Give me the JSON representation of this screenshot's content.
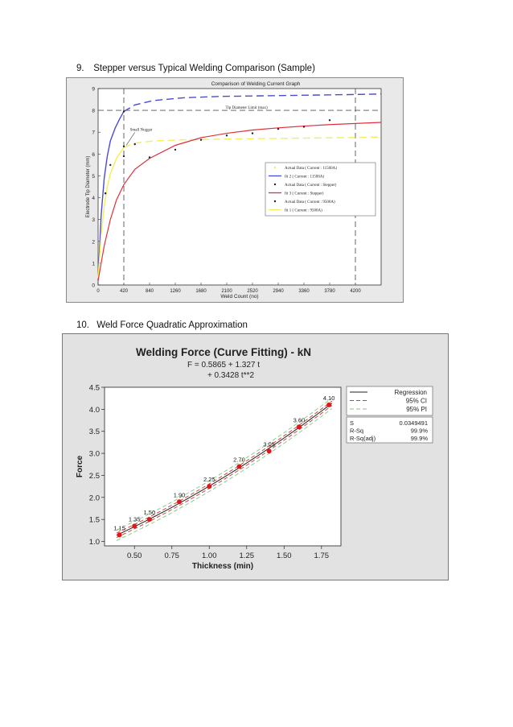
{
  "section9": {
    "number": "9.",
    "title": "Stepper versus Typical Welding Comparison (Sample)"
  },
  "section10": {
    "number": "10.",
    "title": "Weld Force Quadratic Approximation"
  },
  "colors": {
    "fit2_blue": "#4a4ad8",
    "fit1_yellow": "#f2ef5a",
    "fit3_red": "#e0303a",
    "regression_red": "#cc1111",
    "ci_red": "#d03030",
    "pi_green": "#7fc87f"
  },
  "chart_data": [
    {
      "type": "line",
      "title": "Comparison of Welding Current Graph",
      "xlabel": "Weld Count (no)",
      "ylabel": "Electrode Tip Diameter (mm)",
      "xlim": [
        0,
        4620
      ],
      "ylim": [
        0,
        9
      ],
      "x_ticks": [
        "0",
        "420",
        "840",
        "1260",
        "1680",
        "2100",
        "2520",
        "2940",
        "3360",
        "3780",
        "4200"
      ],
      "y_ticks": [
        "0",
        "1",
        "2",
        "3",
        "4",
        "5",
        "6",
        "7",
        "8",
        "9"
      ],
      "annotations": {
        "tip_limit": "Tip Diameter Limit (max)",
        "small_nugget": "Small Nugget"
      },
      "reference_lines": {
        "horizontal_y": 8,
        "vertical_x": [
          420,
          4200
        ]
      },
      "legend": [
        "Actual Data ( Current : 11500A)",
        "fit 2 ( Current : 11500A)",
        "Actual Data ( Current : Stepper)",
        "fit 3 ( Current : Stepper)",
        "Actual Data ( Current : 9500A)",
        "fit 1 ( Current : 9500A)"
      ],
      "legend_placement": "center-right",
      "grid": false,
      "series": [
        {
          "name": "fit 2 ( Current : 11500A)",
          "style": "solid-then-dashed",
          "x": [
            0,
            50,
            100,
            150,
            200,
            280,
            350,
            420,
            600,
            900,
            1400,
            2000,
            3000,
            4000,
            4620
          ],
          "y": [
            0.2,
            3.2,
            4.9,
            5.9,
            6.6,
            7.2,
            7.6,
            7.95,
            8.25,
            8.45,
            8.58,
            8.64,
            8.68,
            8.72,
            8.75
          ]
        },
        {
          "name": "fit 1 ( Current : 9500A)",
          "style": "solid-then-dashed",
          "x": [
            0,
            50,
            100,
            150,
            200,
            300,
            420,
            600,
            900,
            1400,
            2000,
            3000,
            4000,
            4620
          ],
          "y": [
            0.3,
            2.3,
            3.6,
            4.5,
            5.1,
            5.8,
            6.3,
            6.5,
            6.6,
            6.65,
            6.68,
            6.72,
            6.75,
            6.78
          ]
        },
        {
          "name": "fit 3 ( Current : Stepper)",
          "style": "solid",
          "x": [
            0,
            100,
            200,
            300,
            420,
            600,
            840,
            1260,
            1680,
            2100,
            2520,
            2940,
            3360,
            3780,
            4200,
            4620
          ],
          "y": [
            0.2,
            1.8,
            3.0,
            3.9,
            4.6,
            5.3,
            5.8,
            6.4,
            6.75,
            6.95,
            7.1,
            7.2,
            7.28,
            7.35,
            7.4,
            7.45
          ]
        },
        {
          "name": "Actual Data ( Current : Stepper)",
          "style": "points",
          "x": [
            420,
            840,
            1260,
            1680,
            2100,
            2520,
            2940,
            3360,
            3780
          ],
          "y": [
            5.9,
            5.85,
            6.2,
            6.65,
            6.85,
            6.95,
            7.15,
            7.25,
            7.55
          ]
        },
        {
          "name": "Actual Data ( Current : 11500A)",
          "style": "points",
          "x": [
            420
          ],
          "y": [
            7.95
          ]
        },
        {
          "name": "Actual Data ( Current : 9500A)",
          "style": "points",
          "x": [
            120,
            200,
            420,
            600
          ],
          "y": [
            4.2,
            5.5,
            6.35,
            6.45
          ]
        }
      ]
    },
    {
      "type": "scatter",
      "title": "Welding Force (Curve Fitting) - kN",
      "equation_line1": "F = 0.5865 + 1.327 t",
      "equation_line2": "+ 0.3428 t**2",
      "xlabel": "Thickness (min)",
      "ylabel": "Force",
      "xlim": [
        0.3,
        1.88
      ],
      "ylim": [
        0.9,
        4.5
      ],
      "x_ticks": [
        "0.50",
        "0.75",
        "1.00",
        "1.25",
        "1.50",
        "1.75"
      ],
      "y_ticks": [
        "1.0",
        "1.5",
        "2.0",
        "2.5",
        "3.0",
        "3.5",
        "4.0",
        "4.5"
      ],
      "legend": [
        "Regression",
        "95% CI",
        "95% PI"
      ],
      "legend_placement": "right",
      "stats": [
        {
          "label": "S",
          "value": "0.0349491"
        },
        {
          "label": "R-Sq",
          "value": "99.9%"
        },
        {
          "label": "R-Sq(adj)",
          "value": "99.9%"
        }
      ],
      "x": [
        0.4,
        0.5,
        0.6,
        0.8,
        1.0,
        1.2,
        1.4,
        1.6,
        1.8
      ],
      "y": [
        1.15,
        1.35,
        1.5,
        1.9,
        2.25,
        2.7,
        3.05,
        3.6,
        4.1
      ],
      "point_labels": [
        "1.15",
        "1.35",
        "1.50",
        "1.90",
        "2.25",
        "2.70",
        "3.05",
        "3.60",
        "4.10"
      ],
      "fit": {
        "a": 0.5865,
        "b": 1.327,
        "c": 0.3428
      }
    }
  ]
}
